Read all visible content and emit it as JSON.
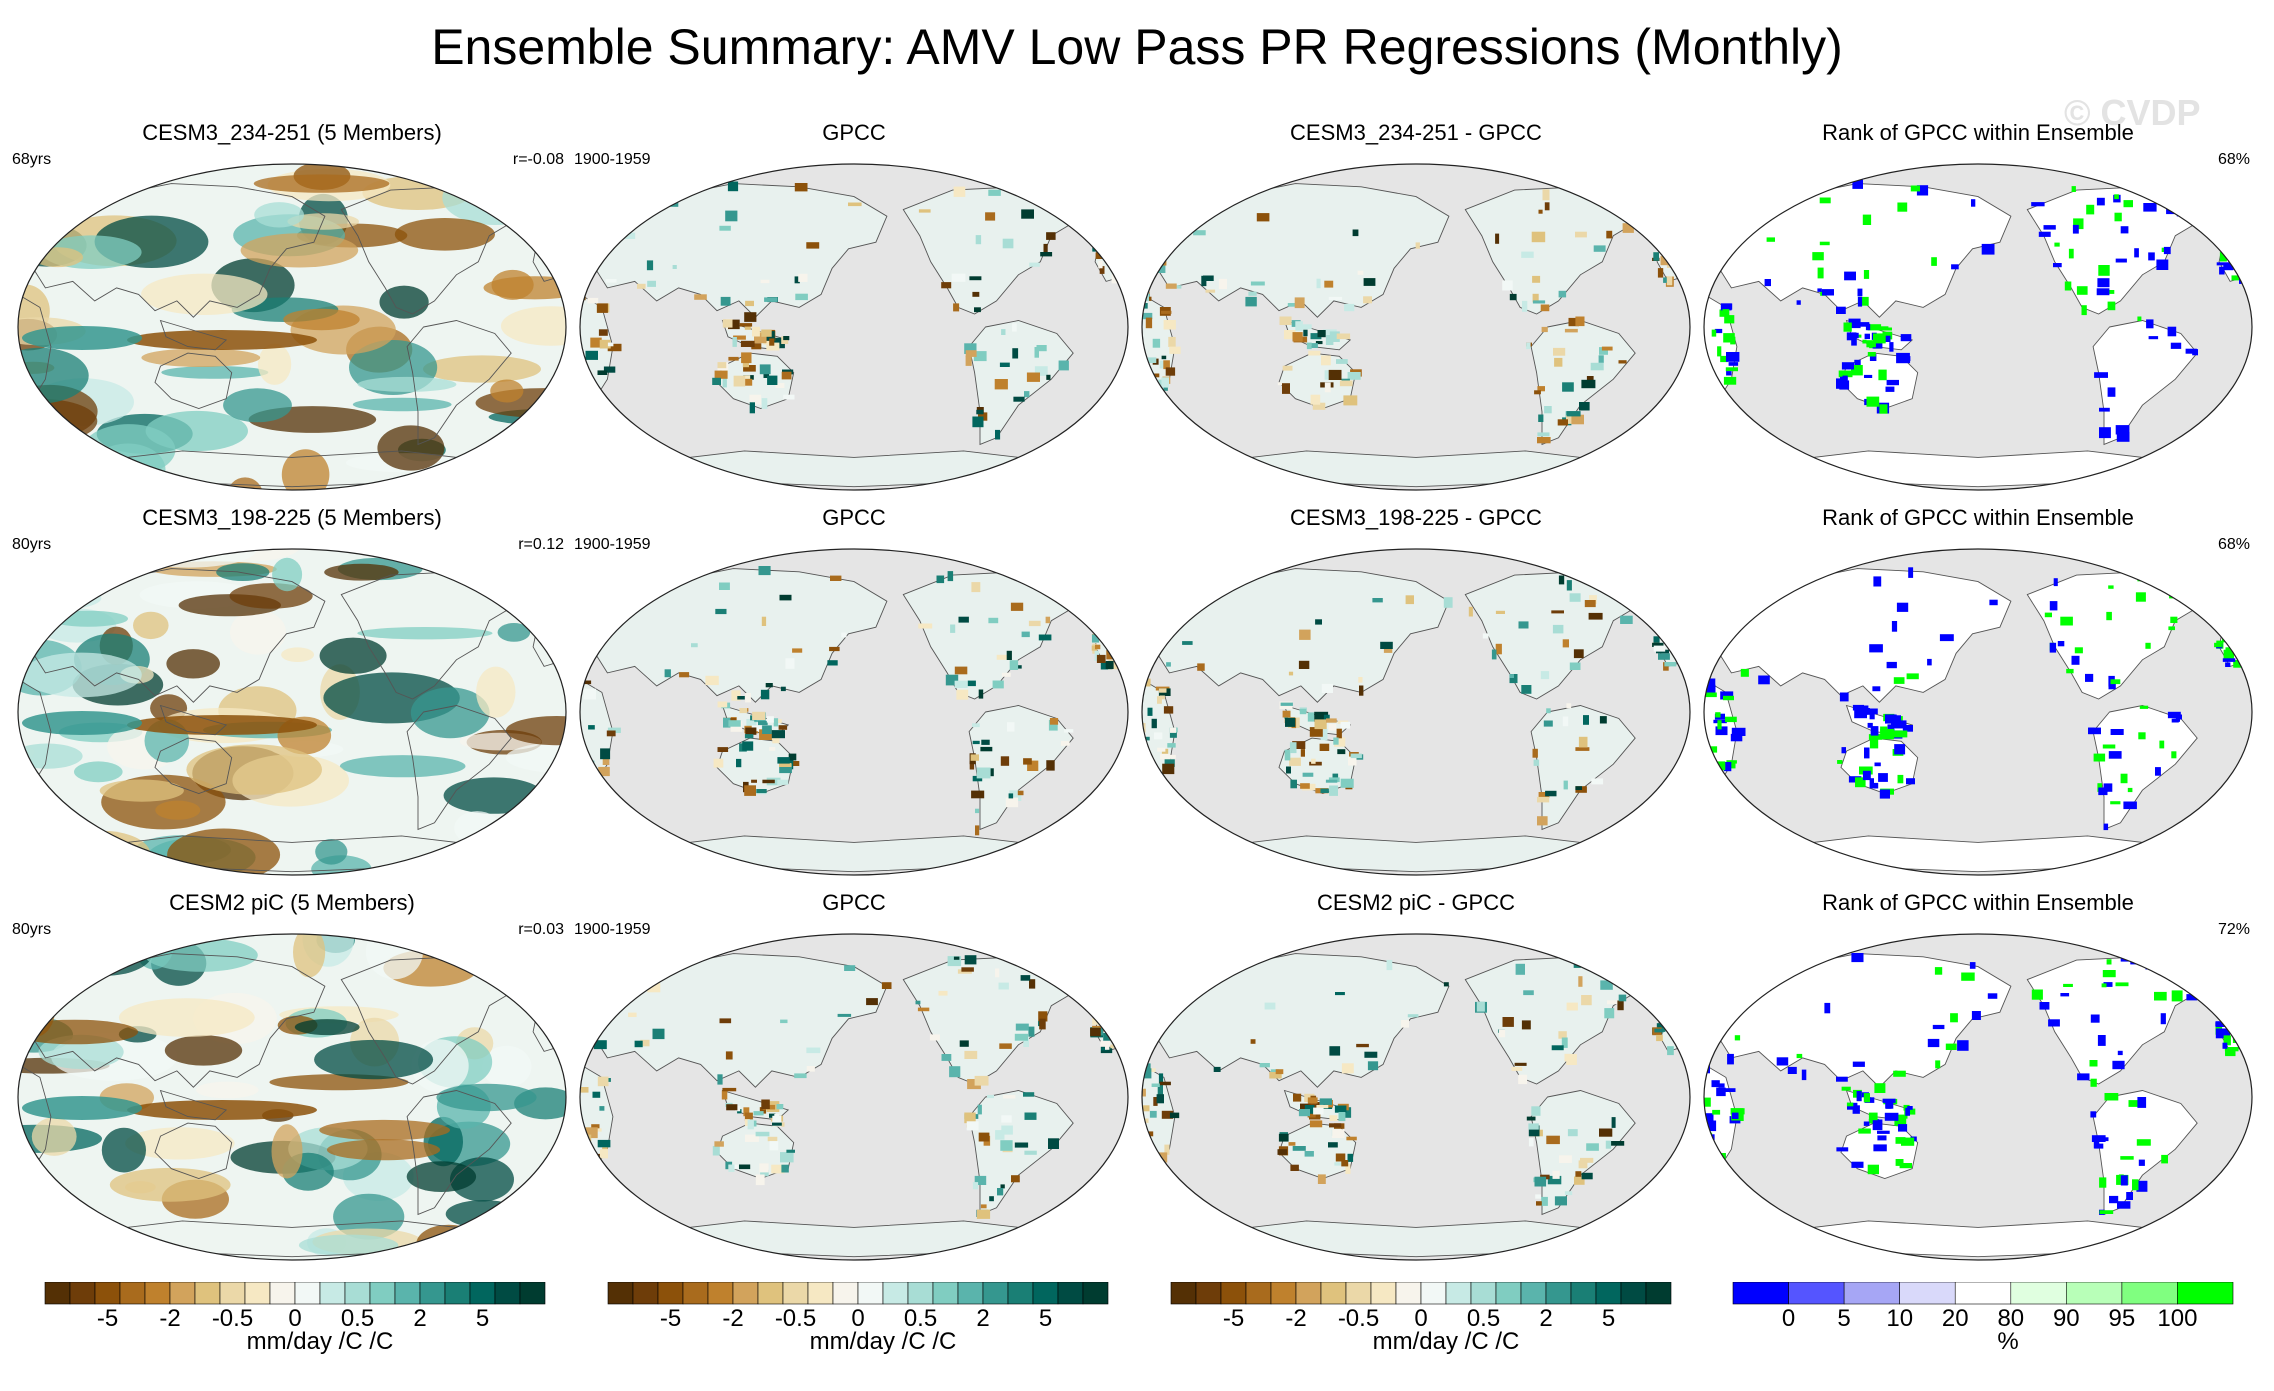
{
  "title": "Ensemble Summary: AMV Low Pass PR Regressions (Monthly)",
  "watermark": "© CVDP",
  "colors": {
    "ocean": "#e5e5e5",
    "land_outline": "#555555",
    "brown_scale": [
      "#543005",
      "#6e3d09",
      "#8c510a",
      "#a96b1d",
      "#bf812d",
      "#d2a35c",
      "#dfc27d",
      "#ebd8a8",
      "#f6e8c3",
      "#f7f4ec"
    ],
    "teal_scale": [
      "#f2f8f6",
      "#c7eae5",
      "#a8ddd5",
      "#80cdc1",
      "#5ab4ac",
      "#35978f",
      "#1a7f75",
      "#01665e",
      "#004b43",
      "#003c30"
    ],
    "rank_scale": [
      "#0000ff",
      "#5555ff",
      "#a6a6f5",
      "#d9d9fa",
      "#ffffff",
      "#e0ffe0",
      "#b8ffb8",
      "#80ff80",
      "#00ff00"
    ]
  },
  "panels": [
    {
      "id": "r1c1",
      "title": "CESM3_234-251 (5 Members)",
      "left_label": "68yrs",
      "right_label": "r=-0.08",
      "type": "full"
    },
    {
      "id": "r1c2",
      "title": "GPCC",
      "left_label": "1900-1959",
      "right_label": "",
      "type": "land"
    },
    {
      "id": "r1c3",
      "title": "CESM3_234-251 - GPCC",
      "left_label": "",
      "right_label": "",
      "type": "land"
    },
    {
      "id": "r1c4",
      "title": "Rank of GPCC within Ensemble",
      "left_label": "",
      "right_label": "68%",
      "type": "rank"
    },
    {
      "id": "r2c1",
      "title": "CESM3_198-225 (5 Members)",
      "left_label": "80yrs",
      "right_label": "r=0.12",
      "type": "full"
    },
    {
      "id": "r2c2",
      "title": "GPCC",
      "left_label": "1900-1959",
      "right_label": "",
      "type": "land"
    },
    {
      "id": "r2c3",
      "title": "CESM3_198-225 - GPCC",
      "left_label": "",
      "right_label": "",
      "type": "land"
    },
    {
      "id": "r2c4",
      "title": "Rank of GPCC within Ensemble",
      "left_label": "",
      "right_label": "68%",
      "type": "rank"
    },
    {
      "id": "r3c1",
      "title": "CESM2 piC (5 Members)",
      "left_label": "80yrs",
      "right_label": "r=0.03",
      "type": "full"
    },
    {
      "id": "r3c2",
      "title": "GPCC",
      "left_label": "1900-1959",
      "right_label": "",
      "type": "land"
    },
    {
      "id": "r3c3",
      "title": "CESM2 piC - GPCC",
      "left_label": "",
      "right_label": "",
      "type": "land"
    },
    {
      "id": "r3c4",
      "title": "Rank of GPCC within Ensemble",
      "left_label": "",
      "right_label": "72%",
      "type": "rank"
    }
  ],
  "colorbars": [
    {
      "ticks": [
        "-5",
        "-2",
        "-0.5",
        "0",
        "0.5",
        "2",
        "5"
      ],
      "unit": "mm/day /C /C",
      "scale": "brbg"
    },
    {
      "ticks": [
        "-5",
        "-2",
        "-0.5",
        "0",
        "0.5",
        "2",
        "5"
      ],
      "unit": "mm/day /C /C",
      "scale": "brbg"
    },
    {
      "ticks": [
        "-5",
        "-2",
        "-0.5",
        "0",
        "0.5",
        "2",
        "5"
      ],
      "unit": "mm/day /C /C",
      "scale": "brbg"
    },
    {
      "ticks": [
        "0",
        "5",
        "10",
        "20",
        "80",
        "90",
        "95",
        "100"
      ],
      "unit": "%",
      "scale": "rank"
    }
  ],
  "chart_data": {
    "type": "map-grid",
    "title": "Ensemble Summary: AMV Low Pass PR Regressions (Monthly)",
    "projection": "Robinson, Pacific-centered",
    "variable": "PR regression on AMV (low pass)",
    "units": "mm/day /C /C",
    "contour_levels": [
      -5,
      -4,
      -3,
      -2,
      -1,
      -0.5,
      -0.25,
      -0.1,
      0,
      0.1,
      0.25,
      0.5,
      1,
      2,
      3,
      4,
      5
    ],
    "rank_levels": [
      0,
      5,
      10,
      20,
      80,
      90,
      95,
      100
    ],
    "rows": [
      {
        "model": "CESM3_234-251 (5 Members)",
        "years": "68yrs",
        "pattern_correlation": -0.08,
        "obs": "GPCC",
        "obs_period": "1900-1959",
        "rank_percent": 68
      },
      {
        "model": "CESM3_198-225 (5 Members)",
        "years": "80yrs",
        "pattern_correlation": 0.12,
        "obs": "GPCC",
        "obs_period": "1900-1959",
        "rank_percent": 68
      },
      {
        "model": "CESM2 piC (5 Members)",
        "years": "80yrs",
        "pattern_correlation": 0.03,
        "obs": "GPCC",
        "obs_period": "1900-1959",
        "rank_percent": 72
      }
    ]
  }
}
